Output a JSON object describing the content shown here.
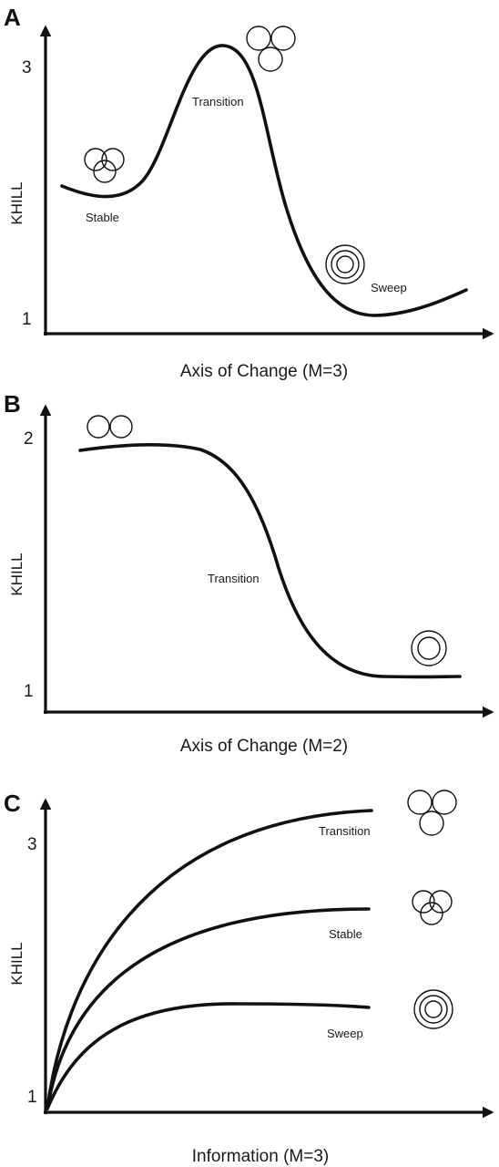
{
  "panels": [
    {
      "letter": "A",
      "ylabel": "KHILL",
      "xlabel": "Axis of Change (M=3)",
      "yticks": [
        "3",
        "1"
      ],
      "curve_labels": {
        "stable": "Stable",
        "transition": "Transition",
        "sweep": "Sweep"
      }
    },
    {
      "letter": "B",
      "ylabel": "KHILL",
      "xlabel": "Axis of Change (M=2)",
      "yticks": [
        "2",
        "1"
      ],
      "curve_labels": {
        "transition": "Transition"
      }
    },
    {
      "letter": "C",
      "ylabel": "KHILL",
      "xlabel": "Information (M=3)",
      "yticks": [
        "3",
        "1"
      ],
      "curve_labels": {
        "transition": "Transition",
        "stable": "Stable",
        "sweep": "Sweep"
      }
    }
  ],
  "icons": {
    "a_stable": "three-overlapping-circles-icon",
    "a_transition": "three-separate-circles-icon",
    "a_sweep": "concentric-circles-icon",
    "b_start": "two-circles-icon",
    "b_end": "concentric-circles-icon",
    "c_transition": "three-separate-circles-icon",
    "c_stable": "three-overlapping-circles-icon",
    "c_sweep": "concentric-circles-icon"
  }
}
